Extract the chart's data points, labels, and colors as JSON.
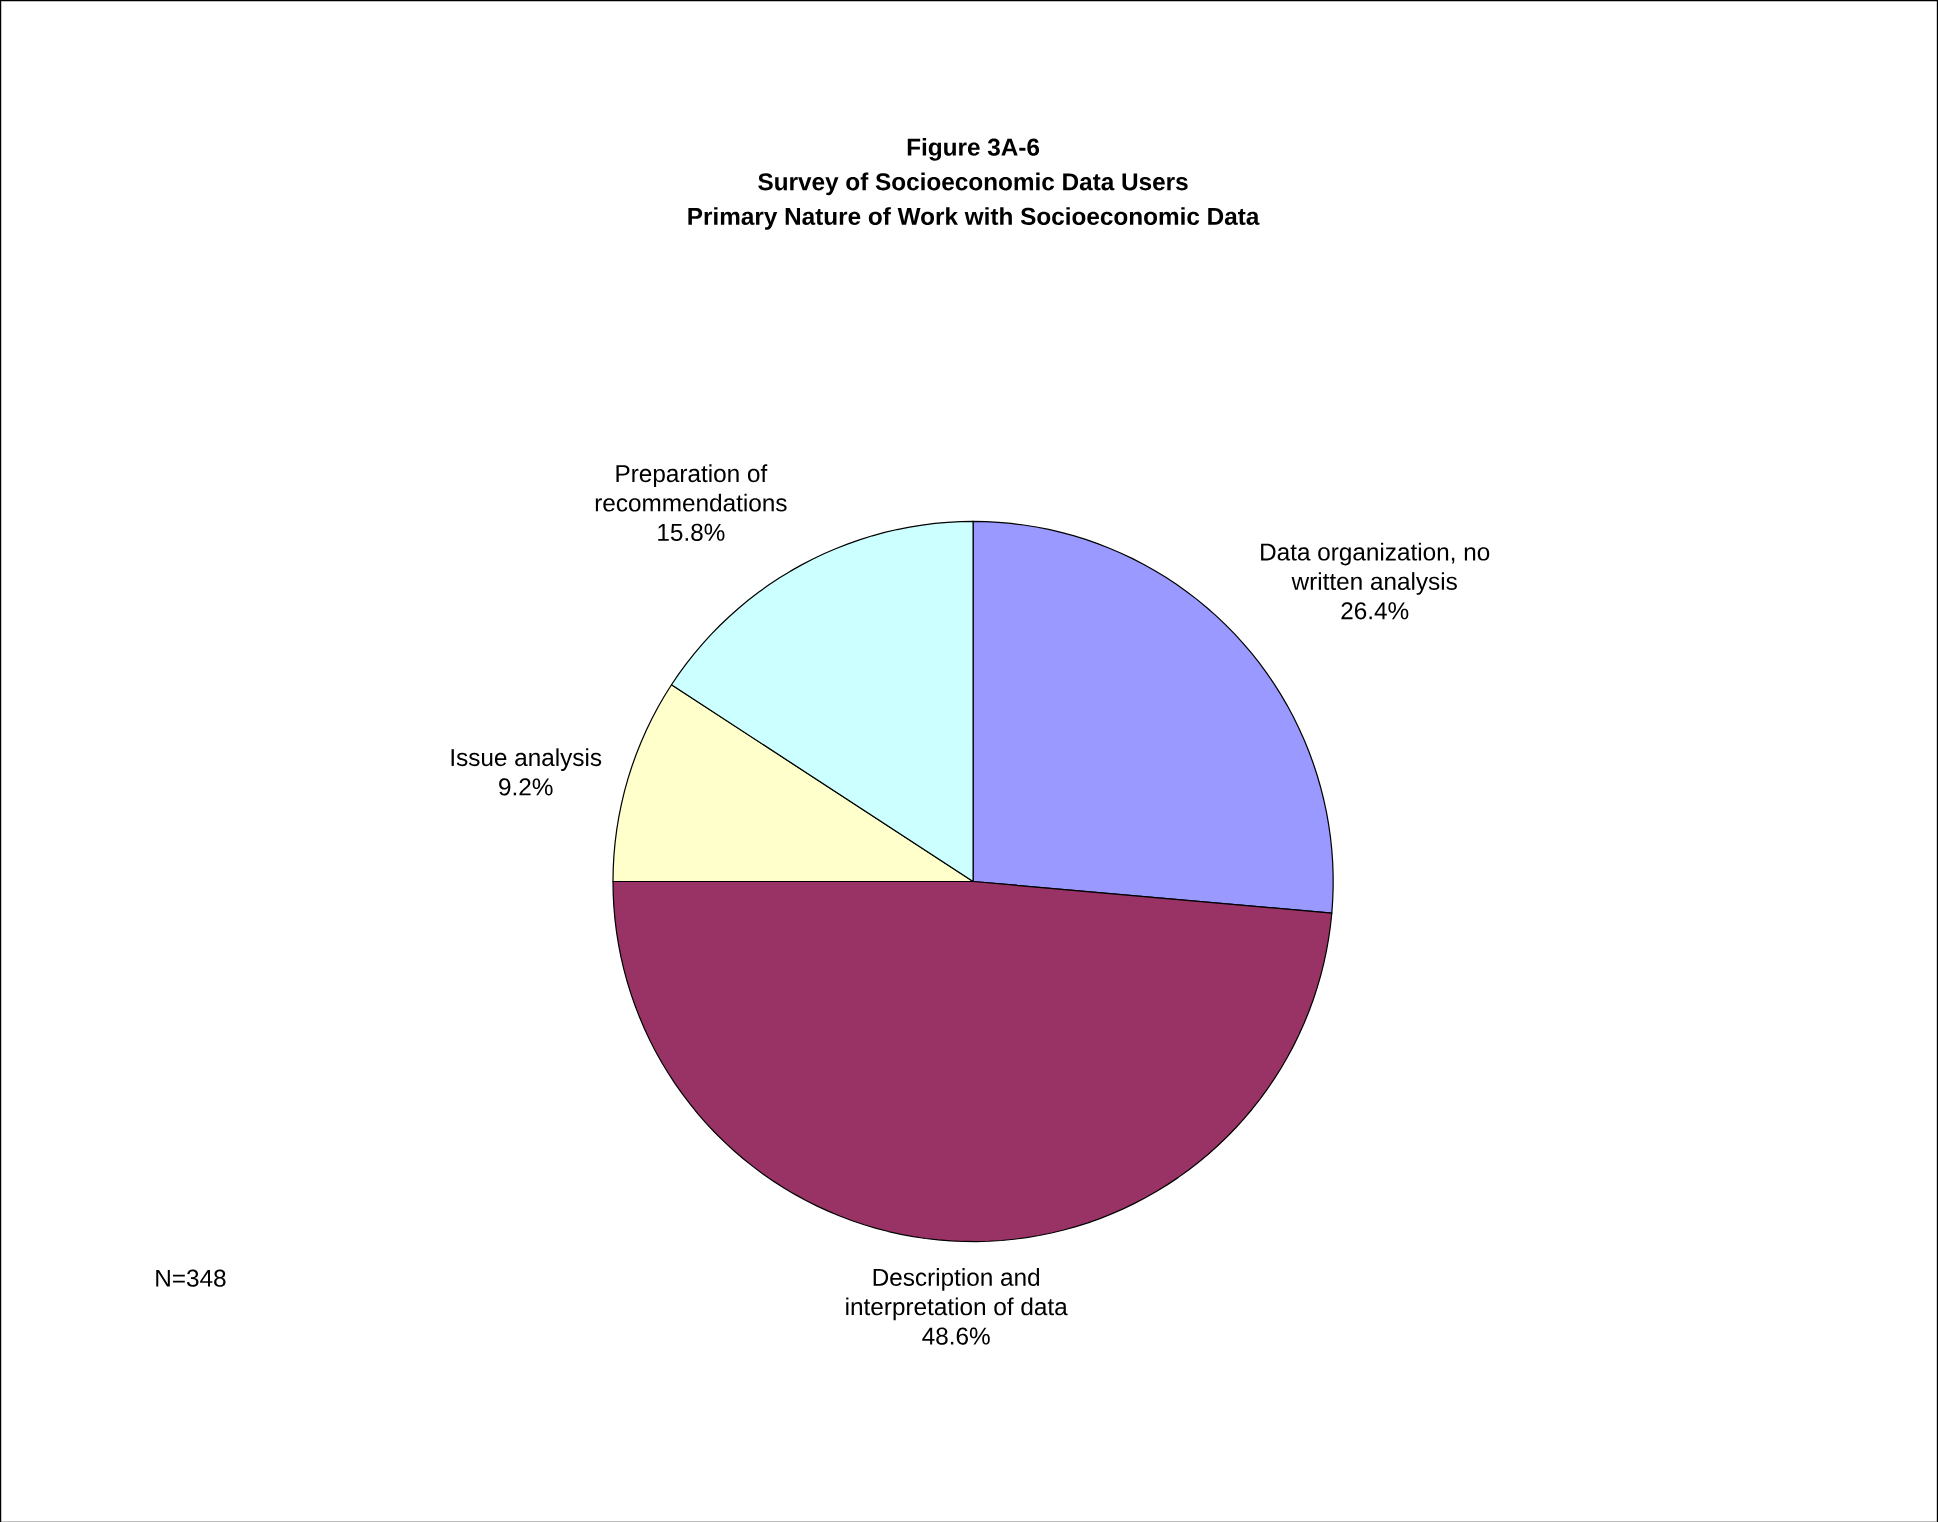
{
  "chart_data": {
    "type": "pie",
    "title": "Survey of Socioeconomic Data Users",
    "subtitle": "Primary Nature of Work with Socioeconomic Data",
    "categories": [
      "Data organization, no written analysis",
      "Description and interpretation of data",
      "Issue analysis",
      "Preparation of recommendations"
    ],
    "values": [
      26.4,
      48.6,
      9.2,
      15.8
    ],
    "value_labels": [
      "26.4%",
      "48.6%",
      "9.2%",
      "15.8%"
    ],
    "colors": [
      "#9999ff",
      "#993366",
      "#ffffcc",
      "#ccffff"
    ],
    "annotations": [
      "Figure 3A-6",
      "N=348"
    ]
  }
}
